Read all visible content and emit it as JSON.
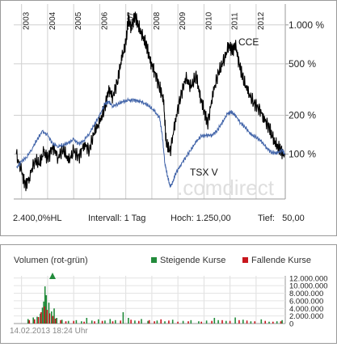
{
  "chart_data": [
    {
      "type": "line",
      "y_scale": "log",
      "x_ticks": [
        "2003",
        "2004",
        "2005",
        "2006",
        "2007",
        "2008",
        "2009",
        "2010",
        "2011",
        "2012"
      ],
      "y_ticks": [
        {
          "value": 1000,
          "label": "1.000 %"
        },
        {
          "value": 500,
          "label": "500 %"
        },
        {
          "value": 200,
          "label": "200 %"
        },
        {
          "value": 100,
          "label": "100 %"
        }
      ],
      "ylim": [
        45,
        1450
      ],
      "xlim": [
        2002.7,
        2013.12
      ],
      "grid": true,
      "watermark": ".comdirect",
      "series": [
        {
          "name": "CCE",
          "color": "#000000",
          "points": [
            [
              2002.8,
              100
            ],
            [
              2003.0,
              72
            ],
            [
              2003.15,
              58
            ],
            [
              2003.3,
              66
            ],
            [
              2003.5,
              90
            ],
            [
              2003.7,
              84
            ],
            [
              2003.85,
              104
            ],
            [
              2004.0,
              92
            ],
            [
              2004.2,
              115
            ],
            [
              2004.4,
              95
            ],
            [
              2004.6,
              110
            ],
            [
              2004.8,
              88
            ],
            [
              2005.0,
              105
            ],
            [
              2005.2,
              95
            ],
            [
              2005.4,
              120
            ],
            [
              2005.6,
              108
            ],
            [
              2005.8,
              150
            ],
            [
              2006.0,
              175
            ],
            [
              2006.2,
              230
            ],
            [
              2006.35,
              320
            ],
            [
              2006.5,
              280
            ],
            [
              2006.7,
              380
            ],
            [
              2006.85,
              560
            ],
            [
              2007.0,
              700
            ],
            [
              2007.1,
              1150
            ],
            [
              2007.2,
              950
            ],
            [
              2007.35,
              1200
            ],
            [
              2007.5,
              960
            ],
            [
              2007.65,
              800
            ],
            [
              2007.8,
              680
            ],
            [
              2007.95,
              520
            ],
            [
              2008.1,
              440
            ],
            [
              2008.3,
              330
            ],
            [
              2008.45,
              260
            ],
            [
              2008.55,
              120
            ],
            [
              2008.7,
              104
            ],
            [
              2008.9,
              180
            ],
            [
              2009.1,
              280
            ],
            [
              2009.3,
              390
            ],
            [
              2009.5,
              330
            ],
            [
              2009.7,
              400
            ],
            [
              2009.85,
              280
            ],
            [
              2010.0,
              220
            ],
            [
              2010.15,
              175
            ],
            [
              2010.35,
              300
            ],
            [
              2010.55,
              420
            ],
            [
              2010.75,
              520
            ],
            [
              2010.95,
              690
            ],
            [
              2011.1,
              640
            ],
            [
              2011.2,
              720
            ],
            [
              2011.35,
              500
            ],
            [
              2011.5,
              380
            ],
            [
              2011.7,
              300
            ],
            [
              2011.9,
              250
            ],
            [
              2012.1,
              230
            ],
            [
              2012.3,
              190
            ],
            [
              2012.5,
              160
            ],
            [
              2012.65,
              130
            ],
            [
              2012.8,
              115
            ],
            [
              2012.95,
              108
            ],
            [
              2013.1,
              98
            ]
          ]
        },
        {
          "name": "TSX V",
          "color": "#3f62a8",
          "points": [
            [
              2002.8,
              78
            ],
            [
              2003.0,
              88
            ],
            [
              2003.2,
              95
            ],
            [
              2003.4,
              110
            ],
            [
              2003.6,
              130
            ],
            [
              2003.8,
              150
            ],
            [
              2004.0,
              140
            ],
            [
              2004.2,
              120
            ],
            [
              2004.4,
              115
            ],
            [
              2004.6,
              118
            ],
            [
              2004.8,
              122
            ],
            [
              2005.0,
              130
            ],
            [
              2005.2,
              120
            ],
            [
              2005.4,
              128
            ],
            [
              2005.6,
              145
            ],
            [
              2005.8,
              170
            ],
            [
              2006.0,
              200
            ],
            [
              2006.2,
              245
            ],
            [
              2006.35,
              255
            ],
            [
              2006.5,
              235
            ],
            [
              2006.7,
              245
            ],
            [
              2006.9,
              255
            ],
            [
              2007.1,
              260
            ],
            [
              2007.3,
              262
            ],
            [
              2007.5,
              258
            ],
            [
              2007.7,
              250
            ],
            [
              2007.9,
              235
            ],
            [
              2008.1,
              215
            ],
            [
              2008.3,
              190
            ],
            [
              2008.4,
              140
            ],
            [
              2008.5,
              85
            ],
            [
              2008.6,
              68
            ],
            [
              2008.7,
              56
            ],
            [
              2008.8,
              60
            ],
            [
              2008.9,
              70
            ],
            [
              2009.1,
              82
            ],
            [
              2009.3,
              95
            ],
            [
              2009.5,
              108
            ],
            [
              2009.7,
              125
            ],
            [
              2009.9,
              138
            ],
            [
              2010.1,
              140
            ],
            [
              2010.3,
              140
            ],
            [
              2010.5,
              152
            ],
            [
              2010.7,
              175
            ],
            [
              2010.9,
              205
            ],
            [
              2011.05,
              212
            ],
            [
              2011.2,
              200
            ],
            [
              2011.4,
              175
            ],
            [
              2011.6,
              160
            ],
            [
              2011.8,
              142
            ],
            [
              2012.0,
              135
            ],
            [
              2012.2,
              126
            ],
            [
              2012.4,
              112
            ],
            [
              2012.6,
              103
            ],
            [
              2012.8,
              102
            ],
            [
              2013.0,
              107
            ],
            [
              2013.1,
              100
            ]
          ]
        }
      ]
    },
    {
      "type": "bar",
      "title": "Volumen (rot-grün)",
      "y_ticks": [
        {
          "value": 0,
          "label": "0"
        },
        {
          "value": 2000000,
          "label": "2.000.000"
        },
        {
          "value": 4000000,
          "label": "4.000.000"
        },
        {
          "value": 6000000,
          "label": "6.000.000"
        },
        {
          "value": 8000000,
          "label": "8.000.000"
        },
        {
          "value": 10000000,
          "label": "10.000.000"
        },
        {
          "value": 12000000,
          "label": "12.000.000"
        }
      ],
      "ylim": [
        0,
        12600000
      ],
      "xlim": [
        2002.7,
        2013.12
      ],
      "legend": "top-right",
      "series": [
        {
          "name": "Steigende Kurse",
          "color": "#228b3b",
          "points": [
            [
              2003.25,
              1200000
            ],
            [
              2003.45,
              1600000
            ],
            [
              2003.6,
              1800000
            ],
            [
              2003.72,
              2600000
            ],
            [
              2003.8,
              4200000
            ],
            [
              2003.85,
              5800000
            ],
            [
              2003.9,
              9800000
            ],
            [
              2003.95,
              7500000
            ],
            [
              2004.05,
              5500000
            ],
            [
              2004.15,
              3200000
            ],
            [
              2004.25,
              4000000
            ],
            [
              2004.35,
              1500000
            ],
            [
              2004.55,
              1000000
            ],
            [
              2004.8,
              700000
            ],
            [
              2005.1,
              900000
            ],
            [
              2005.3,
              600000
            ],
            [
              2005.5,
              1500000
            ],
            [
              2005.7,
              800000
            ],
            [
              2005.95,
              1100000
            ],
            [
              2006.2,
              800000
            ],
            [
              2006.4,
              1200000
            ],
            [
              2006.6,
              900000
            ],
            [
              2006.9,
              3000000
            ],
            [
              2007.1,
              1500000
            ],
            [
              2007.35,
              800000
            ],
            [
              2007.6,
              1200000
            ],
            [
              2007.85,
              700000
            ],
            [
              2008.2,
              800000
            ],
            [
              2008.5,
              600000
            ],
            [
              2008.8,
              1000000
            ],
            [
              2009.2,
              700000
            ],
            [
              2009.5,
              900000
            ],
            [
              2009.8,
              600000
            ],
            [
              2010.1,
              800000
            ],
            [
              2010.4,
              1500000
            ],
            [
              2010.55,
              900000
            ],
            [
              2010.85,
              700000
            ],
            [
              2011.2,
              1600000
            ],
            [
              2011.5,
              1000000
            ],
            [
              2011.8,
              600000
            ],
            [
              2012.2,
              1100000
            ],
            [
              2012.5,
              500000
            ],
            [
              2012.8,
              600000
            ],
            [
              2013.0,
              900000
            ]
          ]
        },
        {
          "name": "Fallende Kurse",
          "color": "#c8161d",
          "points": [
            [
              2003.3,
              900000
            ],
            [
              2003.5,
              1100000
            ],
            [
              2003.65,
              1700000
            ],
            [
              2003.75,
              3000000
            ],
            [
              2003.88,
              4500000
            ],
            [
              2003.98,
              3600000
            ],
            [
              2004.08,
              2700000
            ],
            [
              2004.2,
              2000000
            ],
            [
              2004.3,
              1300000
            ],
            [
              2004.5,
              900000
            ],
            [
              2004.7,
              600000
            ],
            [
              2005.0,
              700000
            ],
            [
              2005.4,
              500000
            ],
            [
              2005.8,
              600000
            ],
            [
              2006.1,
              700000
            ],
            [
              2006.5,
              600000
            ],
            [
              2006.8,
              800000
            ],
            [
              2007.2,
              1000000
            ],
            [
              2007.5,
              700000
            ],
            [
              2007.9,
              900000
            ],
            [
              2008.1,
              600000
            ],
            [
              2008.35,
              1100000
            ],
            [
              2008.65,
              800000
            ],
            [
              2009.0,
              500000
            ],
            [
              2009.4,
              600000
            ],
            [
              2009.9,
              500000
            ],
            [
              2010.3,
              700000
            ],
            [
              2010.7,
              900000
            ],
            [
              2011.0,
              700000
            ],
            [
              2011.35,
              900000
            ],
            [
              2011.65,
              800000
            ],
            [
              2011.95,
              600000
            ],
            [
              2012.35,
              700000
            ],
            [
              2012.65,
              500000
            ],
            [
              2012.95,
              600000
            ]
          ]
        }
      ]
    }
  ],
  "info_bar": {
    "change": "2.400,0%HL",
    "interval": "Intervall: 1 Tag",
    "high": "Hoch: 1.250,00",
    "low": "Tief:   50,00"
  },
  "timestamp": "14.02.2013 18:24 Uhr"
}
